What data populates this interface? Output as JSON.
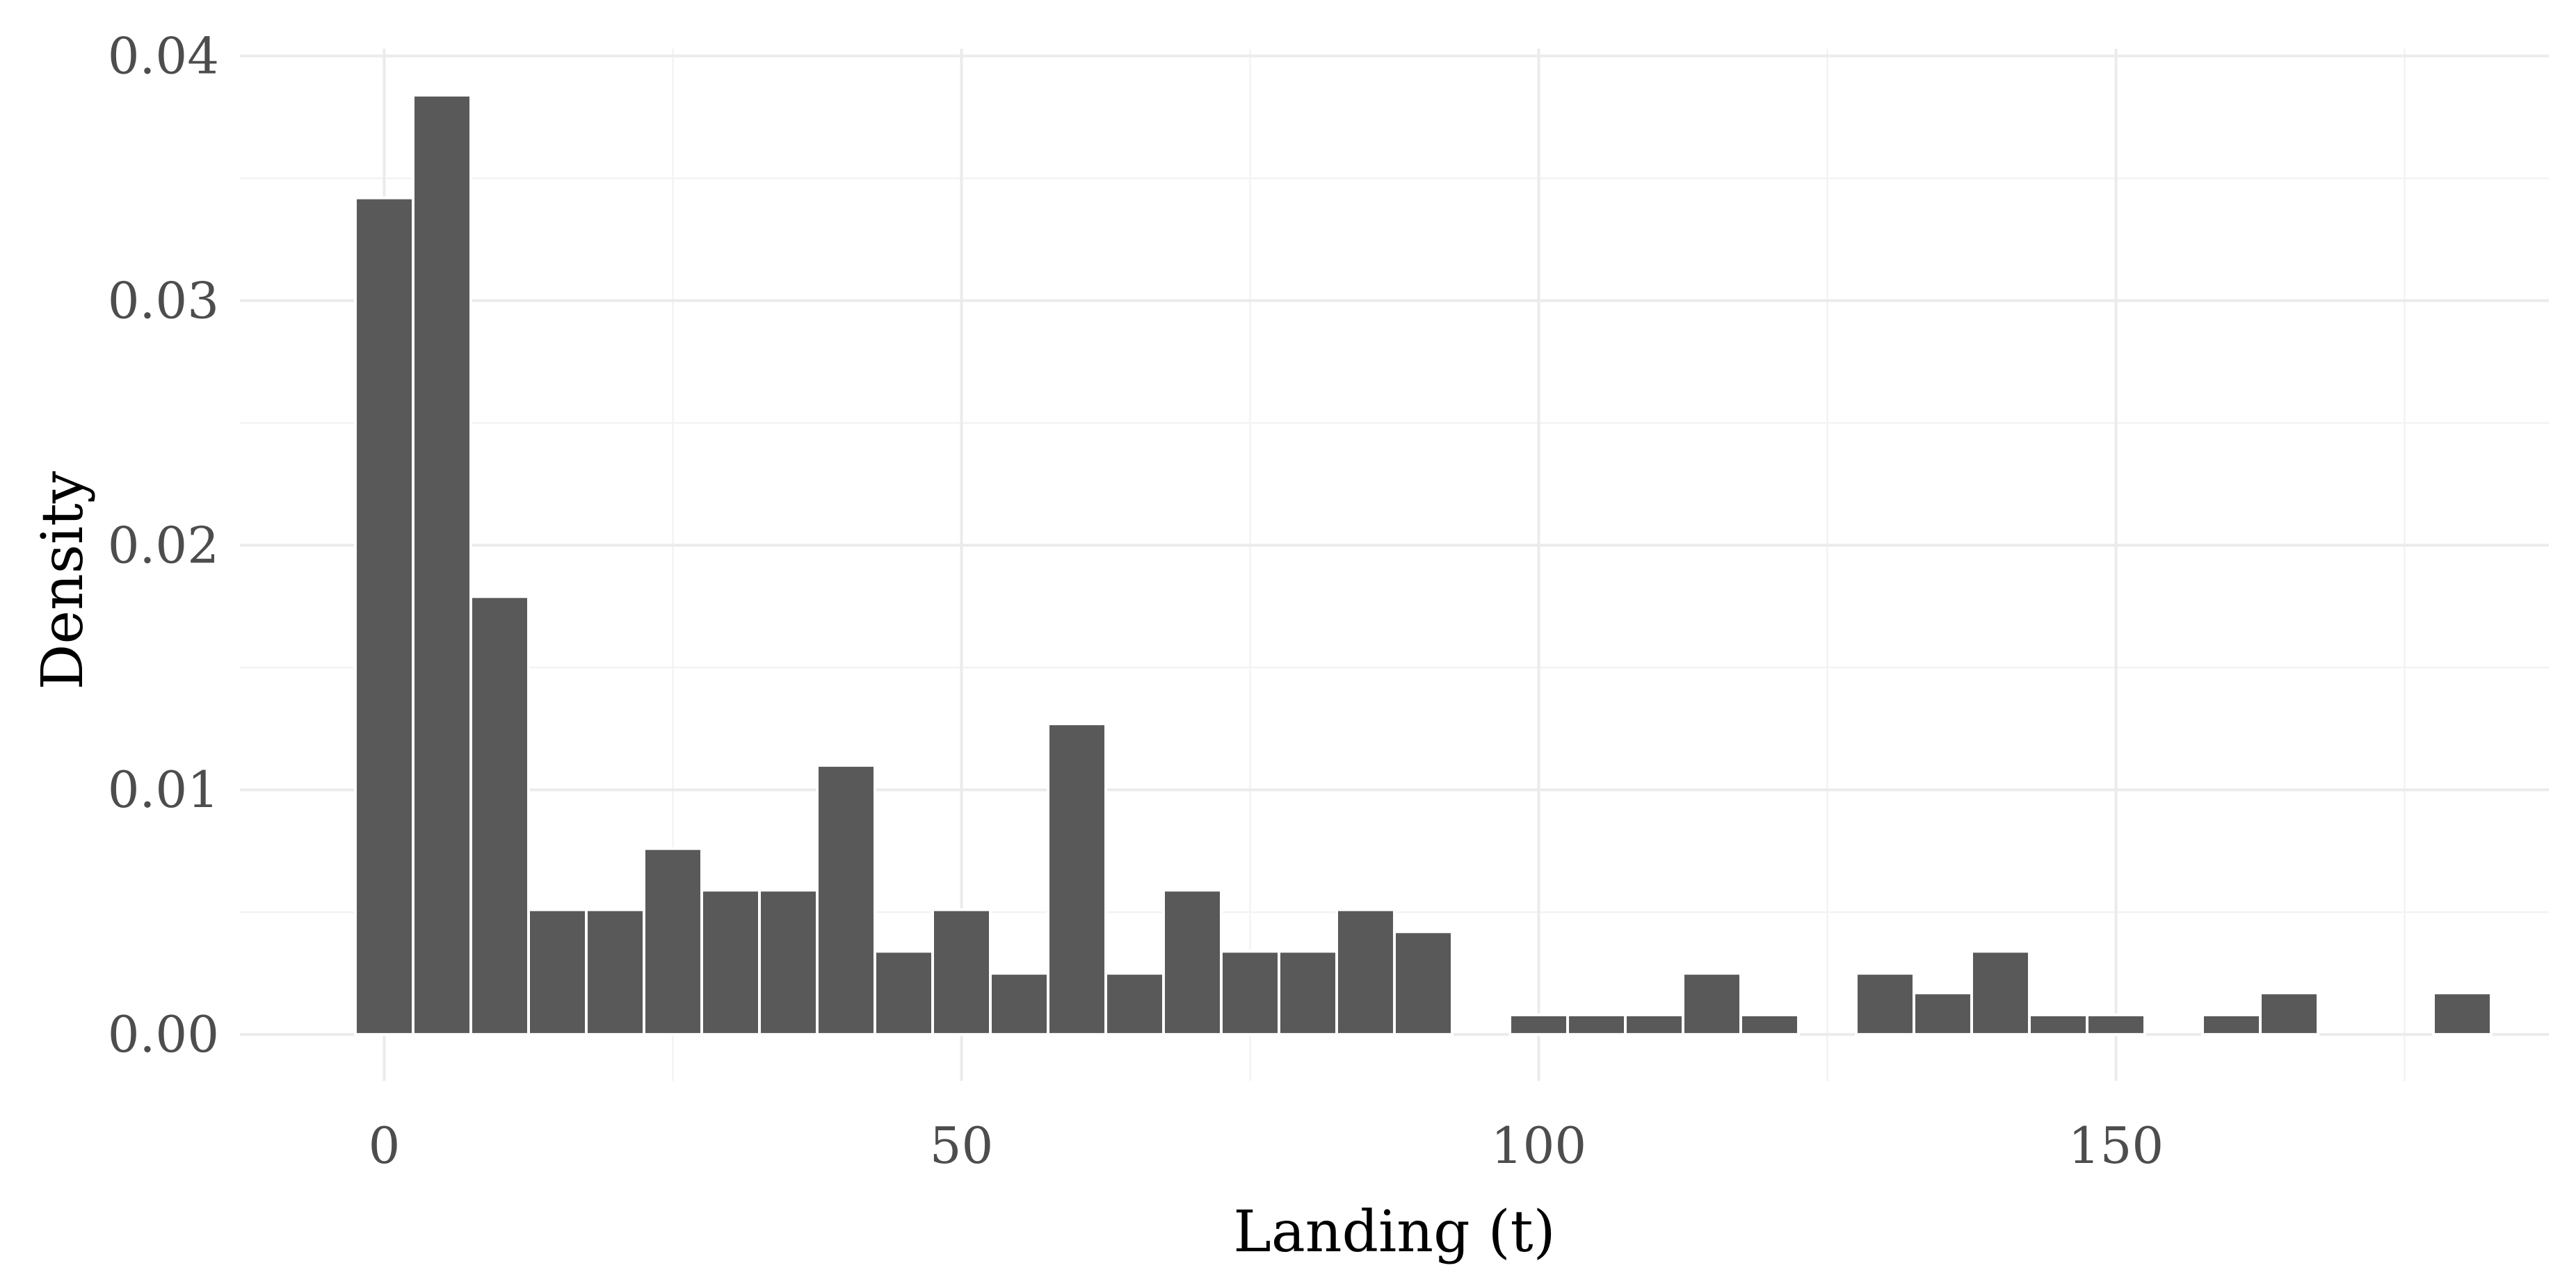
{
  "chart_data": {
    "type": "bar",
    "subtype": "histogram",
    "title": "",
    "xlabel": "Landing (t)",
    "ylabel": "Density",
    "binwidth": 5,
    "bin_centers": [
      0,
      5,
      10,
      15,
      20,
      25,
      30,
      35,
      40,
      45,
      50,
      55,
      60,
      65,
      70,
      75,
      80,
      85,
      90,
      95,
      100,
      105,
      110,
      115,
      120,
      125,
      130,
      135,
      140,
      145,
      150,
      155,
      160,
      165,
      170,
      175,
      180
    ],
    "values": [
      0.0342,
      0.0384,
      0.0179,
      0.0051,
      0.0051,
      0.0076,
      0.0059,
      0.0059,
      0.011,
      0.0034,
      0.0051,
      0.0025,
      0.0127,
      0.0025,
      0.0059,
      0.0034,
      0.0034,
      0.0051,
      0.0042,
      0,
      0.0008,
      0.0008,
      0.0008,
      0.0025,
      0.0008,
      0,
      0.0025,
      0.0017,
      0.0034,
      0.0008,
      0.0008,
      0,
      0.0008,
      0.0017,
      0,
      0,
      0.0017
    ],
    "xlim": [
      -12.5,
      187.5
    ],
    "ylim": [
      -0.0019,
      0.0403
    ],
    "x_ticks": [
      0,
      50,
      100,
      150
    ],
    "x_tick_labels": [
      "0",
      "50",
      "100",
      "150"
    ],
    "y_ticks": [
      0,
      0.01,
      0.02,
      0.03,
      0.04
    ],
    "y_tick_labels": [
      "0.00",
      "0.01",
      "0.02",
      "0.03",
      "0.04"
    ],
    "grid": true,
    "bar_color": "#595959",
    "background": "#ffffff"
  }
}
